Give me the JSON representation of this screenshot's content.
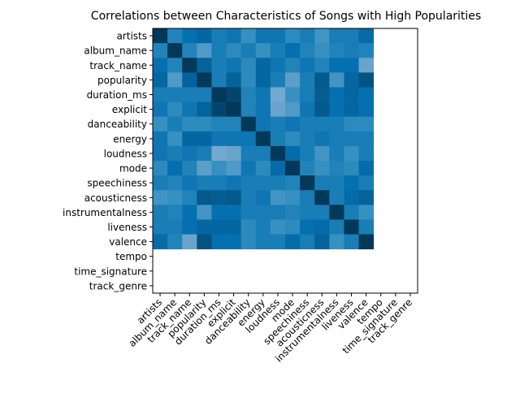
{
  "chart_data": {
    "type": "heatmap",
    "title": "Correlations between Characteristics of Songs with High Popularities",
    "xlabel": "",
    "ylabel": "",
    "colormap": "PuBu",
    "value_range": [
      -1,
      1
    ],
    "labels": [
      "artists",
      "album_name",
      "track_name",
      "popularity",
      "duration_ms",
      "explicit",
      "danceability",
      "energy",
      "loudness",
      "mode",
      "speechiness",
      "acousticness",
      "instrumentalness",
      "liveness",
      "valence",
      "tempo",
      "time_signature",
      "track_genre"
    ],
    "matrix": [
      [
        1.0,
        0.35,
        0.5,
        0.6,
        0.4,
        0.45,
        0.25,
        0.45,
        0.45,
        0.3,
        0.4,
        0.2,
        0.4,
        0.4,
        0.55,
        null,
        null,
        null
      ],
      [
        0.35,
        1.0,
        0.35,
        0.15,
        0.4,
        0.3,
        0.4,
        0.25,
        0.4,
        0.5,
        0.35,
        0.25,
        0.35,
        0.4,
        0.35,
        null,
        null,
        null
      ],
      [
        0.5,
        0.35,
        1.0,
        0.65,
        0.4,
        0.45,
        0.3,
        0.6,
        0.45,
        0.35,
        0.45,
        0.35,
        0.5,
        0.5,
        0.05,
        null,
        null,
        null
      ],
      [
        0.6,
        0.15,
        0.65,
        1.0,
        0.4,
        0.65,
        0.3,
        0.6,
        0.4,
        0.1,
        0.4,
        0.75,
        0.2,
        0.6,
        0.8,
        null,
        null,
        null
      ],
      [
        0.4,
        0.4,
        0.4,
        0.4,
        1.0,
        0.9,
        0.35,
        0.45,
        0.0,
        0.25,
        0.4,
        0.7,
        0.5,
        0.6,
        0.5,
        null,
        null,
        null
      ],
      [
        0.45,
        0.3,
        0.45,
        0.65,
        0.9,
        1.0,
        0.35,
        0.45,
        0.05,
        0.15,
        0.45,
        0.75,
        0.5,
        0.6,
        0.5,
        null,
        null,
        null
      ],
      [
        0.25,
        0.4,
        0.3,
        0.3,
        0.35,
        0.35,
        1.0,
        0.45,
        0.4,
        0.45,
        0.4,
        0.4,
        0.4,
        0.3,
        0.3,
        null,
        null,
        null
      ],
      [
        0.45,
        0.25,
        0.6,
        0.6,
        0.45,
        0.45,
        0.45,
        1.0,
        0.4,
        0.3,
        0.4,
        0.45,
        0.4,
        0.4,
        0.4,
        null,
        null,
        null
      ],
      [
        0.45,
        0.4,
        0.45,
        0.4,
        0.0,
        0.05,
        0.4,
        0.4,
        1.0,
        0.55,
        0.4,
        0.2,
        0.4,
        0.25,
        0.4,
        null,
        null,
        null
      ],
      [
        0.3,
        0.5,
        0.35,
        0.1,
        0.25,
        0.15,
        0.45,
        0.3,
        0.55,
        1.0,
        0.35,
        0.25,
        0.35,
        0.3,
        0.55,
        null,
        null,
        null
      ],
      [
        0.4,
        0.35,
        0.45,
        0.4,
        0.4,
        0.45,
        0.4,
        0.4,
        0.4,
        0.35,
        1.0,
        0.4,
        0.4,
        0.5,
        0.4,
        null,
        null,
        null
      ],
      [
        0.2,
        0.25,
        0.35,
        0.75,
        0.7,
        0.75,
        0.4,
        0.45,
        0.2,
        0.25,
        0.4,
        1.0,
        0.4,
        0.55,
        0.65,
        null,
        null,
        null
      ],
      [
        0.4,
        0.35,
        0.5,
        0.2,
        0.5,
        0.5,
        0.4,
        0.4,
        0.4,
        0.35,
        0.4,
        0.4,
        1.0,
        0.4,
        0.25,
        null,
        null,
        null
      ],
      [
        0.4,
        0.4,
        0.5,
        0.6,
        0.6,
        0.6,
        0.3,
        0.4,
        0.25,
        0.3,
        0.5,
        0.55,
        0.4,
        1.0,
        0.4,
        null,
        null,
        null
      ],
      [
        0.55,
        0.35,
        0.05,
        0.8,
        0.5,
        0.5,
        0.3,
        0.4,
        0.4,
        0.55,
        0.4,
        0.65,
        0.25,
        0.4,
        1.0,
        null,
        null,
        null
      ],
      [
        null,
        null,
        null,
        null,
        null,
        null,
        null,
        null,
        null,
        null,
        null,
        null,
        null,
        null,
        null,
        null,
        null,
        null
      ],
      [
        null,
        null,
        null,
        null,
        null,
        null,
        null,
        null,
        null,
        null,
        null,
        null,
        null,
        null,
        null,
        null,
        null,
        null
      ],
      [
        null,
        null,
        null,
        null,
        null,
        null,
        null,
        null,
        null,
        null,
        null,
        null,
        null,
        null,
        null,
        null,
        null,
        null
      ]
    ],
    "grid": false,
    "legend": "none"
  }
}
